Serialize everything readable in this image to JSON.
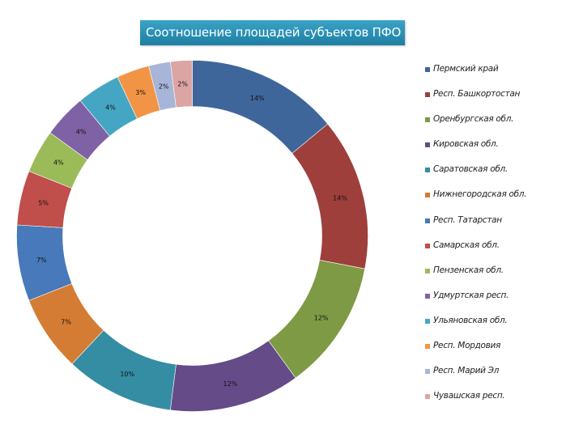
{
  "chart_data": {
    "type": "pie",
    "subtype": "doughnut",
    "title": "Соотношение площадей субъектов ПФО",
    "legend_position": "right",
    "start_angle_deg": 0,
    "direction": "clockwise",
    "categories": [
      "Пермский край",
      "Респ. Башкортостан",
      "Оренбургская обл.",
      "Кировская обл.",
      "Саратовская обл.",
      "Нижнегородская обл.",
      "Респ. Татарстан",
      "Самарская обл.",
      "Пензенская обл.",
      "Удмуртская респ.",
      "Ульяновская обл.",
      "Респ. Мордовия",
      "Респ. Марий Эл",
      "Чувашская респ."
    ],
    "values": [
      14,
      14,
      12,
      12,
      10,
      7,
      7,
      5,
      4,
      4,
      4,
      3,
      2,
      2
    ],
    "labels": [
      "14%",
      "14%",
      "12%",
      "12%",
      "10%",
      "7%",
      "7%",
      "5%",
      "4%",
      "4%",
      "4%",
      "3%",
      "2%",
      "2%"
    ],
    "colors": [
      "#3e669a",
      "#9e3f3c",
      "#7e9a45",
      "#654b87",
      "#358da3",
      "#d47c34",
      "#4779bb",
      "#c04e4b",
      "#9bbb59",
      "#7f61a5",
      "#45a6c3",
      "#f29446",
      "#a6b5d8",
      "#dba5a3"
    ],
    "unit": "%"
  },
  "title": "Соотношение площадей субъектов ПФО",
  "legend": {
    "items": [
      {
        "label": "Пермский край",
        "color": "#3e669a"
      },
      {
        "label": "Респ. Башкортостан",
        "color": "#9e3f3c"
      },
      {
        "label": "Оренбургская обл.",
        "color": "#7e9a45"
      },
      {
        "label": "Кировская обл.",
        "color": "#654b87"
      },
      {
        "label": "Саратовская обл.",
        "color": "#358da3"
      },
      {
        "label": "Нижнегородская обл.",
        "color": "#d47c34"
      },
      {
        "label": "Респ. Татарстан",
        "color": "#4779bb"
      },
      {
        "label": "Самарская обл.",
        "color": "#c04e4b"
      },
      {
        "label": "Пензенская обл.",
        "color": "#9bbb59"
      },
      {
        "label": "Удмуртская респ.",
        "color": "#7f61a5"
      },
      {
        "label": "Ульяновская обл.",
        "color": "#45a6c3"
      },
      {
        "label": "Респ. Мордовия",
        "color": "#f29446"
      },
      {
        "label": "Респ. Марий Эл",
        "color": "#a6b5d8"
      },
      {
        "label": "Чувашская респ.",
        "color": "#dba5a3"
      }
    ]
  }
}
